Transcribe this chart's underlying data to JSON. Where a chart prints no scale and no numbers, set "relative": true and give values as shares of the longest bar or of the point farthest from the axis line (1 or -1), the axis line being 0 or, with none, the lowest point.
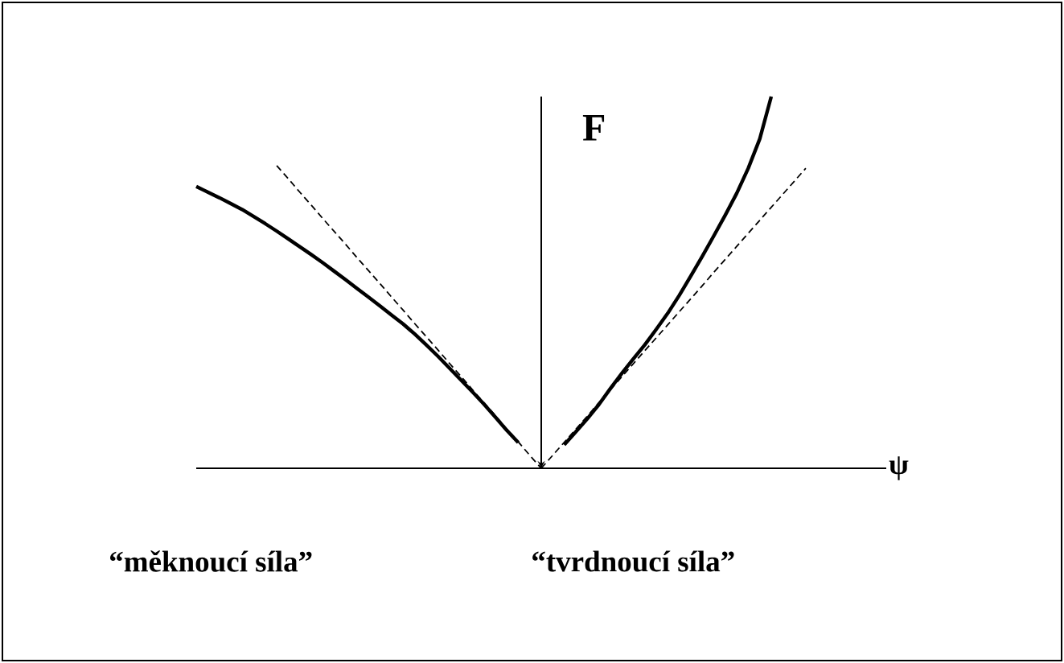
{
  "chart_data": {
    "type": "line",
    "relative": true,
    "xlabel": "ψ",
    "ylabel": "F",
    "annotations": [
      "“měknoucí síla”",
      "“tvrdnoucí síla”"
    ],
    "categories": [
      null,
      null,
      null,
      null,
      null,
      null,
      null,
      null,
      null,
      null,
      null,
      null,
      null,
      null,
      null,
      null,
      null,
      null,
      null,
      null,
      null,
      null,
      null,
      null,
      null,
      null,
      null,
      null,
      null,
      null,
      null,
      null,
      null,
      null,
      null,
      null,
      null,
      null,
      null,
      null,
      null,
      null,
      null,
      null,
      null,
      null,
      null,
      null,
      null,
      null,
      null,
      null,
      null,
      null,
      null,
      null,
      null,
      null,
      null,
      null,
      null
    ],
    "series": [
      {
        "color": "#000000",
        "line_style": "solid",
        "values": [
          0.758,
          0.743,
          0.728,
          0.712,
          0.696,
          0.677,
          0.658,
          0.638,
          0.617,
          0.596,
          0.575,
          0.553,
          0.53,
          0.507,
          0.483,
          0.46,
          0.436,
          0.412,
          0.388,
          0.361,
          0.332,
          0.302,
          0.27,
          0.238,
          0.206,
          0.173,
          0.138,
          0.102,
          0.069,
          null,
          null,
          null,
          null,
          null,
          null,
          null,
          null,
          null,
          null,
          null,
          null,
          null,
          null,
          null,
          null,
          null,
          null,
          null,
          null,
          null,
          null,
          null,
          null,
          null,
          null,
          null,
          null,
          null,
          null,
          null,
          null
        ]
      },
      {
        "color": "#000000",
        "line_style": "dashed",
        "values": [
          null,
          null,
          null,
          null,
          null,
          null,
          null,
          0.814,
          0.779,
          0.743,
          0.708,
          0.672,
          0.637,
          0.602,
          0.566,
          0.531,
          0.496,
          0.46,
          0.425,
          0.389,
          0.354,
          0.319,
          0.283,
          0.248,
          0.212,
          0.177,
          0.142,
          0.106,
          0.071,
          0.035,
          0,
          null,
          null,
          null,
          null,
          null,
          null,
          null,
          null,
          null,
          null,
          null,
          null,
          null,
          null,
          null,
          null,
          null,
          null,
          null,
          null,
          null,
          null,
          null,
          null,
          null,
          null,
          null,
          null,
          null,
          null
        ]
      },
      {
        "color": "#000000",
        "line_style": "dashed",
        "values": [
          null,
          null,
          null,
          null,
          null,
          null,
          null,
          null,
          null,
          null,
          null,
          null,
          null,
          null,
          null,
          null,
          null,
          null,
          null,
          null,
          null,
          null,
          null,
          null,
          null,
          null,
          null,
          null,
          null,
          null,
          0,
          0.035,
          0.07,
          0.105,
          0.14,
          0.176,
          0.211,
          0.246,
          0.281,
          0.316,
          0.351,
          0.386,
          0.421,
          0.456,
          0.491,
          0.527,
          0.562,
          0.597,
          0.632,
          0.667,
          0.702,
          0.737,
          0.772,
          0.807,
          null,
          null,
          null,
          null,
          null,
          null,
          null
        ]
      },
      {
        "color": "#000000",
        "line_style": "solid",
        "values": [
          null,
          null,
          null,
          null,
          null,
          null,
          null,
          null,
          null,
          null,
          null,
          null,
          null,
          null,
          null,
          null,
          null,
          null,
          null,
          null,
          null,
          null,
          null,
          null,
          null,
          null,
          null,
          null,
          null,
          null,
          null,
          null,
          0.063,
          0.098,
          0.133,
          0.171,
          0.214,
          0.255,
          0.294,
          0.332,
          0.374,
          0.417,
          0.465,
          0.517,
          0.57,
          0.625,
          0.681,
          0.74,
          0.807,
          0.886,
          1,
          null,
          null,
          null,
          null,
          null,
          null,
          null,
          null,
          null,
          null
        ]
      }
    ]
  }
}
